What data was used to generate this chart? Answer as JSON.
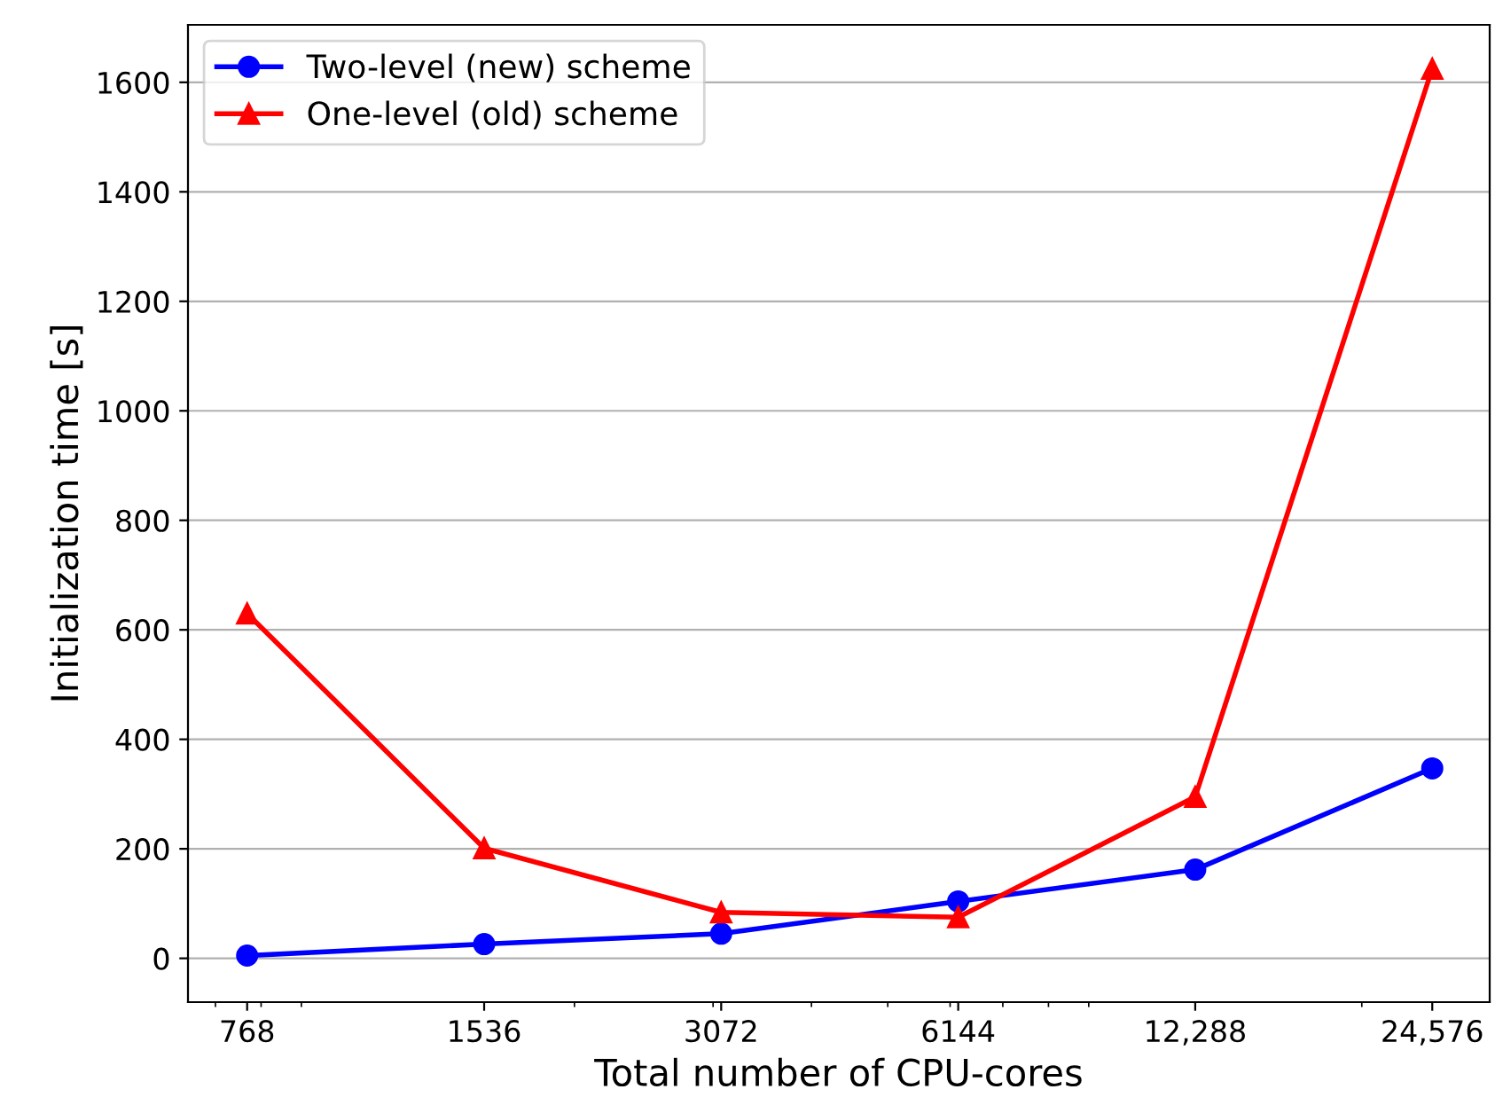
{
  "chart_data": {
    "type": "line",
    "xlabel": "Total number of CPU-cores",
    "ylabel": "Initialization time [s]",
    "x": [
      768,
      1536,
      3072,
      6144,
      12288,
      24576
    ],
    "series": [
      {
        "name": "Two-level (new) scheme",
        "color": "#0000ff",
        "marker": "circle",
        "values": [
          5,
          26,
          45,
          104,
          162,
          347
        ]
      },
      {
        "name": "One-level (old) scheme",
        "color": "#ff0000",
        "marker": "triangle",
        "values": [
          630,
          201,
          84,
          75,
          295,
          1625
        ]
      }
    ],
    "log": "x",
    "xlim": [
      646,
      29070
    ],
    "ylim": [
      -80,
      1705
    ],
    "xticks": [
      768,
      1536,
      3072,
      6144,
      {
        "value": 12288,
        "label": "12,288"
      },
      {
        "value": 24576,
        "label": "24,576"
      }
    ],
    "yticks": [
      0,
      200,
      400,
      600,
      800,
      1000,
      1200,
      1400,
      1600
    ],
    "grid": "y",
    "legend": "top left",
    "line_style": "solid"
  }
}
